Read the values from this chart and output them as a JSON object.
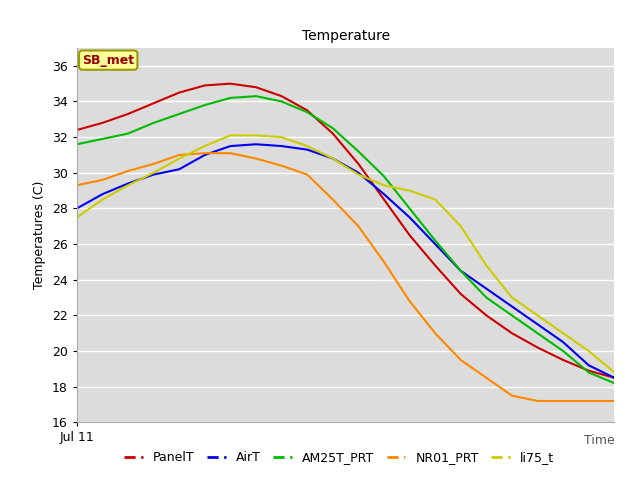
{
  "title": "Temperature",
  "ylabel": "Temperatures (C)",
  "xlabel": "Time",
  "annotation": "SB_met",
  "ylim": [
    16,
    37
  ],
  "yticks": [
    16,
    18,
    20,
    22,
    24,
    26,
    28,
    30,
    32,
    34,
    36
  ],
  "x_label_bottom": "Jul 11",
  "bg_color": "#dcdcdc",
  "series": {
    "PanelT": {
      "color": "#cc0000",
      "points": [
        32.4,
        32.8,
        33.3,
        33.9,
        34.5,
        34.9,
        35.0,
        34.8,
        34.3,
        33.5,
        32.2,
        30.5,
        28.5,
        26.5,
        24.8,
        23.2,
        22.0,
        21.0,
        20.2,
        19.5,
        18.9,
        18.5
      ]
    },
    "AirT": {
      "color": "#0000ee",
      "points": [
        28.0,
        28.8,
        29.4,
        29.9,
        30.2,
        31.0,
        31.5,
        31.6,
        31.5,
        31.3,
        30.8,
        30.0,
        28.8,
        27.5,
        26.0,
        24.5,
        23.5,
        22.5,
        21.5,
        20.5,
        19.2,
        18.5
      ]
    },
    "AM25T_PRT": {
      "color": "#00bb00",
      "points": [
        31.6,
        31.9,
        32.2,
        32.8,
        33.3,
        33.8,
        34.2,
        34.3,
        34.0,
        33.4,
        32.5,
        31.2,
        29.8,
        28.0,
        26.2,
        24.5,
        23.0,
        22.0,
        21.0,
        20.0,
        18.8,
        18.2
      ]
    },
    "NR01_PRT": {
      "color": "#ff8800",
      "points": [
        29.3,
        29.6,
        30.1,
        30.5,
        31.0,
        31.1,
        31.1,
        30.8,
        30.4,
        29.9,
        28.5,
        27.0,
        25.0,
        22.8,
        21.0,
        19.5,
        18.5,
        17.5,
        17.2,
        17.2,
        17.2,
        17.2
      ]
    },
    "li75_t": {
      "color": "#cccc00",
      "points": [
        27.5,
        28.5,
        29.3,
        30.0,
        30.8,
        31.5,
        32.1,
        32.1,
        32.0,
        31.5,
        30.8,
        29.9,
        29.3,
        29.0,
        28.5,
        27.0,
        24.8,
        23.0,
        22.0,
        21.0,
        20.0,
        18.8
      ]
    }
  },
  "title_fontsize": 10,
  "label_fontsize": 9,
  "tick_fontsize": 9,
  "legend_fontsize": 9,
  "linewidth": 1.5
}
